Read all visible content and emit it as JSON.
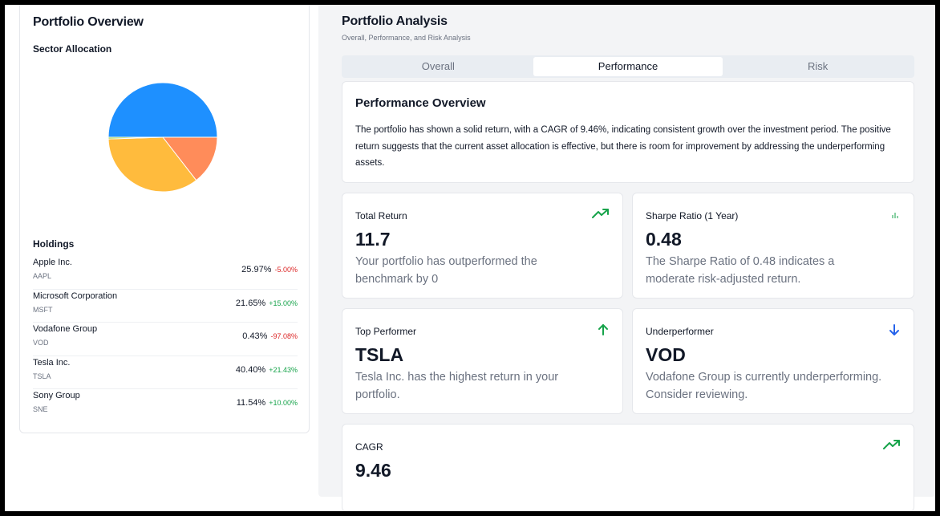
{
  "left": {
    "title": "Portfolio Overview",
    "sector_title": "Sector Allocation",
    "holdings_title": "Holdings",
    "holdings": [
      {
        "name": "Apple Inc.",
        "ticker": "AAPL",
        "weight": "25.97%",
        "change": "-5.00%",
        "direction": "neg"
      },
      {
        "name": "Microsoft Corporation",
        "ticker": "MSFT",
        "weight": "21.65%",
        "change": "+15.00%",
        "direction": "pos"
      },
      {
        "name": "Vodafone Group",
        "ticker": "VOD",
        "weight": "0.43%",
        "change": "-97.08%",
        "direction": "neg"
      },
      {
        "name": "Tesla Inc.",
        "ticker": "TSLA",
        "weight": "40.40%",
        "change": "+21.43%",
        "direction": "pos"
      },
      {
        "name": "Sony Group",
        "ticker": "SNE",
        "weight": "11.54%",
        "change": "+10.00%",
        "direction": "pos"
      }
    ]
  },
  "chart_data": {
    "type": "pie",
    "slices": [
      {
        "value": 50.0,
        "color": "#1e90ff"
      },
      {
        "value": 14.5,
        "color": "#ff8c5a"
      },
      {
        "value": 35.0,
        "color": "#ffbb3d"
      },
      {
        "value": 0.5,
        "color": "#9acd32"
      }
    ]
  },
  "right": {
    "title": "Portfolio Analysis",
    "subtitle": "Overall, Performance, and Risk Analysis",
    "tabs": [
      {
        "label": "Overall",
        "active": false
      },
      {
        "label": "Performance",
        "active": true
      },
      {
        "label": "Risk",
        "active": false
      }
    ],
    "overview": {
      "title": "Performance Overview",
      "text": "The portfolio has shown a solid return, with a CAGR of 9.46%, indicating consistent growth over the investment period. The positive return suggests that the current asset allocation is effective, but there is room for improvement by addressing the underperforming assets."
    },
    "metrics": [
      {
        "title": "Total Return",
        "value": "11.7",
        "desc": "Your portfolio has outperformed the benchmark by 0",
        "icon": "trending-up-icon"
      },
      {
        "title": "Sharpe Ratio (1 Year)",
        "value": "0.48",
        "desc": "The Sharpe Ratio of 0.48 indicates a moderate risk-adjusted return.",
        "icon": "bar-chart-icon"
      },
      {
        "title": "Top Performer",
        "value": "TSLA",
        "desc": "Tesla Inc. has the highest return in your portfolio.",
        "icon": "arrow-up-icon"
      },
      {
        "title": "Underperformer",
        "value": "VOD",
        "desc": "Vodafone Group is currently underperforming. Consider reviewing.",
        "icon": "arrow-down-icon"
      },
      {
        "title": "CAGR",
        "value": "9.46",
        "desc": "",
        "icon": "trending-up-icon"
      }
    ]
  },
  "colors": {
    "positive": "#16a34a",
    "negative": "#dc2626",
    "accent": "#2563eb"
  }
}
